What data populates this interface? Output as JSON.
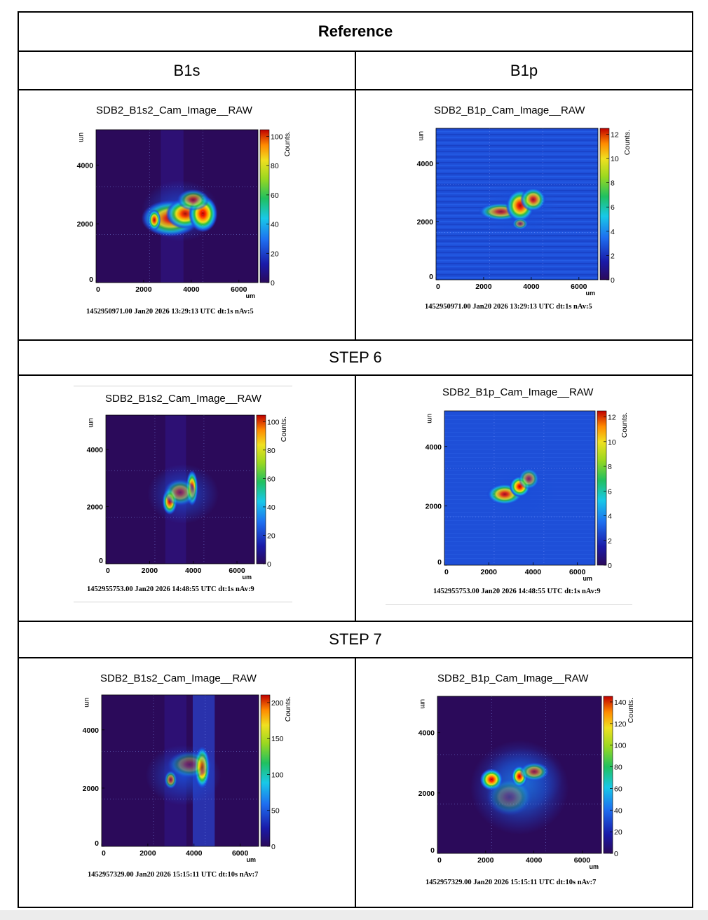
{
  "table": {
    "title": "Reference",
    "col_left": "B1s",
    "col_right": "B1p",
    "step6": "STEP 6",
    "step7": "STEP 7"
  },
  "plots": {
    "ref_b1s": {
      "title": "SDB2_B1s2_Cam_Image__RAW",
      "footer": "1452950971.00 Jan20 2026 13:29:13 UTC dt:1s nAv:5",
      "ylabel": "um",
      "xlabel": "um",
      "zlabel": "Counts.",
      "x_ticks": [
        "0",
        "2000",
        "4000",
        "6000"
      ],
      "y_ticks": [
        "0",
        "2000",
        "4000"
      ],
      "z_ticks": [
        "0",
        "20",
        "40",
        "60",
        "80",
        "100"
      ]
    },
    "ref_b1p": {
      "title": "SDB2_B1p_Cam_Image__RAW",
      "footer": "1452950971.00 Jan20 2026 13:29:13 UTC dt:1s nAv:5",
      "ylabel": "um",
      "xlabel": "um",
      "zlabel": "Counts.",
      "x_ticks": [
        "0",
        "2000",
        "4000",
        "6000"
      ],
      "y_ticks": [
        "0",
        "2000",
        "4000"
      ],
      "z_ticks": [
        "0",
        "2",
        "4",
        "6",
        "8",
        "10",
        "12"
      ]
    },
    "s6_b1s": {
      "title": "SDB2_B1s2_Cam_Image__RAW",
      "footer": "1452955753.00 Jan20 2026 14:48:55 UTC dt:1s nAv:9",
      "ylabel": "um",
      "xlabel": "um",
      "zlabel": "Counts.",
      "x_ticks": [
        "0",
        "2000",
        "4000",
        "6000"
      ],
      "y_ticks": [
        "0",
        "2000",
        "4000"
      ],
      "z_ticks": [
        "0",
        "20",
        "40",
        "60",
        "80",
        "100"
      ]
    },
    "s6_b1p": {
      "title": "SDB2_B1p_Cam_Image__RAW",
      "footer": "1452955753.00 Jan20 2026 14:48:55 UTC dt:1s nAv:9",
      "ylabel": "um",
      "xlabel": "um",
      "zlabel": "Counts.",
      "x_ticks": [
        "0",
        "2000",
        "4000",
        "6000"
      ],
      "y_ticks": [
        "0",
        "2000",
        "4000"
      ],
      "z_ticks": [
        "0",
        "2",
        "4",
        "6",
        "8",
        "10",
        "12"
      ]
    },
    "s7_b1s": {
      "title": "SDB2_B1s2_Cam_Image__RAW",
      "footer": "1452957329.00 Jan20 2026 15:15:11 UTC dt:10s nAv:7",
      "ylabel": "um",
      "xlabel": "um",
      "zlabel": "Counts.",
      "x_ticks": [
        "0",
        "2000",
        "4000",
        "6000"
      ],
      "y_ticks": [
        "0",
        "2000",
        "4000"
      ],
      "z_ticks": [
        "0",
        "50",
        "100",
        "150",
        "200"
      ]
    },
    "s7_b1p": {
      "title": "SDB2_B1p_Cam_Image__RAW",
      "footer": "1452957329.00 Jan20 2026 15:15:11 UTC dt:10s nAv:7",
      "ylabel": "um",
      "xlabel": "um",
      "zlabel": "Counts.",
      "x_ticks": [
        "0",
        "2000",
        "4000",
        "6000"
      ],
      "y_ticks": [
        "0",
        "2000",
        "4000"
      ],
      "z_ticks": [
        "0",
        "20",
        "40",
        "60",
        "80",
        "100",
        "120",
        "140"
      ]
    }
  },
  "colors": {
    "background_dark": "#2b0a5a",
    "background_noise": "#1e4fd8",
    "hot": "#ff1a00"
  }
}
